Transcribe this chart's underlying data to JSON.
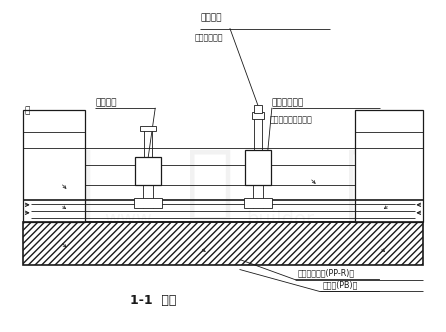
{
  "line_color": "#1a1a1a",
  "label_top": "管件管夸",
  "label_top_sub": "（铜制管级）",
  "label_left_upper": "内贸婺又",
  "label_left": "墙",
  "label_right_upper": "带内管封三通",
  "label_right_upper_sub": "（带回水管封止口）",
  "label_bottom1": "无缝高密度管(PP-R)管",
  "label_bottom2": "射层管(PB)管",
  "section_label": "1-1  节点"
}
